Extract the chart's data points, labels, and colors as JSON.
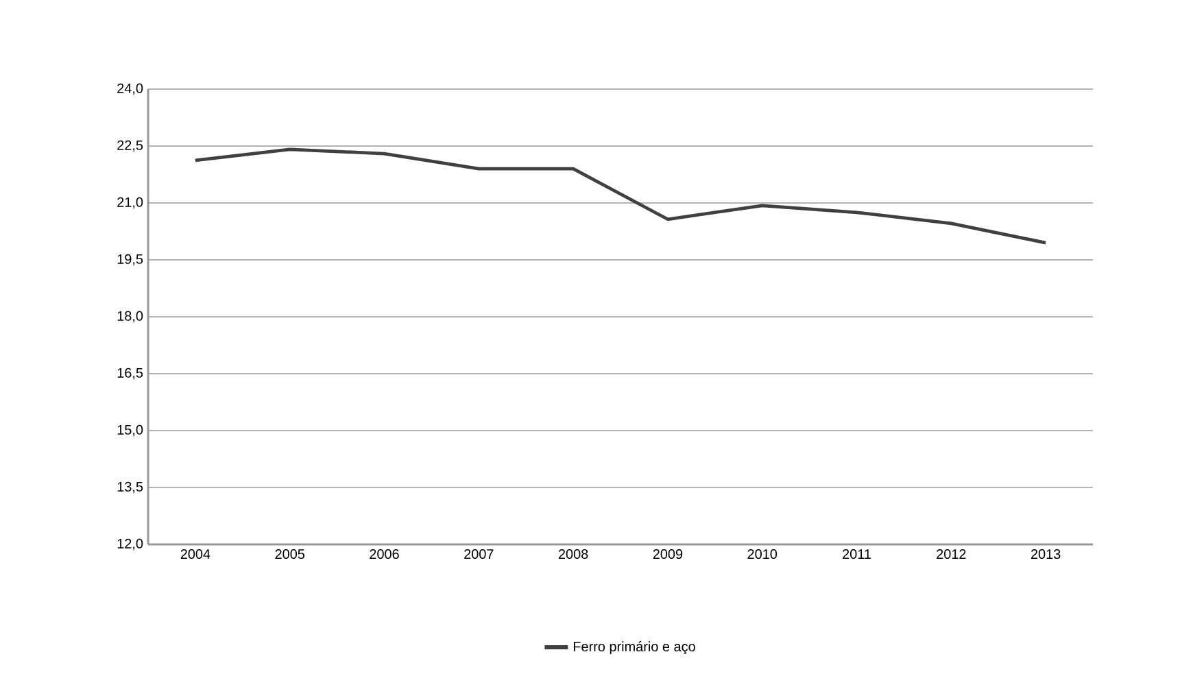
{
  "chart_data": {
    "type": "line",
    "categories": [
      "2004",
      "2005",
      "2006",
      "2007",
      "2008",
      "2009",
      "2010",
      "2011",
      "2012",
      "2013"
    ],
    "series": [
      {
        "name": "Ferro primário e aço",
        "color": "#404040",
        "values": [
          22.12,
          22.41,
          22.3,
          21.9,
          21.9,
          20.57,
          20.93,
          20.75,
          20.46,
          19.95
        ]
      }
    ],
    "ylim": [
      12,
      24
    ],
    "yticks": [
      {
        "value": 12,
        "label": "12,0"
      },
      {
        "value": 13.5,
        "label": "13,5"
      },
      {
        "value": 15,
        "label": "15,0"
      },
      {
        "value": 16.5,
        "label": "16,5"
      },
      {
        "value": 18,
        "label": "18,0"
      },
      {
        "value": 19.5,
        "label": "19,5"
      },
      {
        "value": 21,
        "label": "21,0"
      },
      {
        "value": 22.5,
        "label": "22,5"
      },
      {
        "value": 24,
        "label": "24,0"
      }
    ],
    "grid": "y",
    "legend": "bottom",
    "marker": "none",
    "line_style": "solid"
  }
}
